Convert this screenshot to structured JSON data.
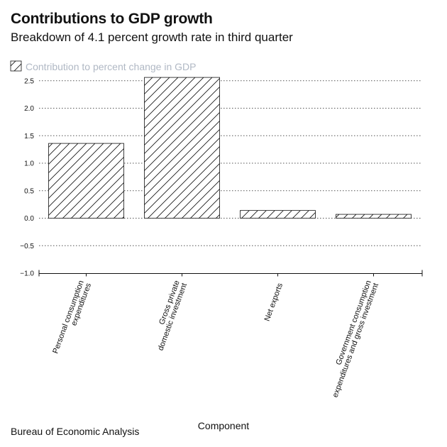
{
  "header": {
    "title": "Contributions to GDP growth",
    "subtitle": "Breakdown of 4.1 percent growth rate in third quarter"
  },
  "footer": {
    "source": "Bureau of Economic Analysis"
  },
  "colors": {
    "legend_text": "#b0b8c4",
    "bar_stroke": "#111111",
    "grid": "#555555",
    "background": "#ffffff"
  },
  "chart_data": {
    "type": "bar",
    "title": "Contributions to GDP growth",
    "subtitle": "Breakdown of 4.1 percent growth rate in third quarter",
    "xlabel": "Component",
    "ylabel": "",
    "categories": [
      [
        "Personal consumption",
        "expenditures"
      ],
      [
        "Gross private",
        "domestic investment"
      ],
      [
        "Net exports"
      ],
      [
        "Government consumption",
        "expenditures and gross investment"
      ]
    ],
    "series": [
      {
        "name": "Contribution to percent change in GDP",
        "values": [
          1.36,
          2.56,
          0.14,
          0.07
        ],
        "pattern": "diagonal-hatch"
      }
    ],
    "ylim": [
      -1.0,
      2.6
    ],
    "yticks": [
      "2.5",
      "2.0",
      "1.5",
      "1.0",
      "0.5",
      "0.0",
      "−0.5",
      "−1.0"
    ],
    "ytick_values": [
      2.5,
      2.0,
      1.5,
      1.0,
      0.5,
      0.0,
      -0.5,
      -1.0
    ],
    "grid": "horizontal-dotted",
    "legend_position": "top-left"
  }
}
